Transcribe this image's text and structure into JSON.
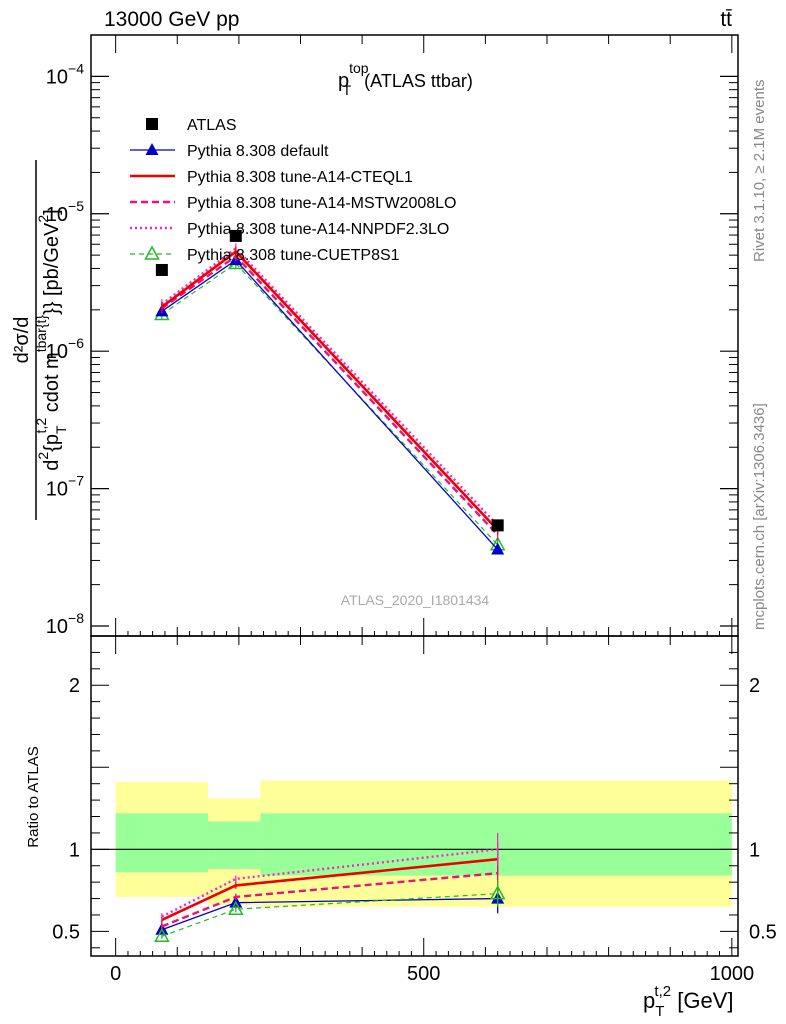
{
  "header": {
    "energy_label": "13000 GeV pp",
    "process_label": "tt̄"
  },
  "side_labels": {
    "rivet": "Rivet 3.1.10, ≥ 2.1M events",
    "mcplots": "mcplots.cern.ch [arXiv:1306.3436]"
  },
  "chart_data": [
    {
      "type": "line",
      "panel": "main",
      "title": "p_T^top (ATLAS ttbar)",
      "title_main": "p",
      "title_sup": "top",
      "title_sub": "T",
      "title_rest": " (ATLAS ttbar)",
      "watermark": "ATLAS_2020_I1801434",
      "ylabel": "d²σ/d{p_T^{t,2} cdot m^{tbar{t}}} [pb/GeV²]",
      "ylabel_parts": {
        "num": "d²σ/d",
        "den_pre": "d",
        "den_p": "{p",
        "den_sub": "T",
        "den_sup": "t,2",
        "den_mid": " cdot m",
        "den_sup2": "tbar{t}",
        "den_end": "}} [pb/GeV",
        "den_exp": "2",
        "den_close": "]"
      },
      "yscale": "log",
      "ylim": [
        1e-08,
        0.0002
      ],
      "yticks": [
        {
          "v": 1e-08,
          "exp": "−8"
        },
        {
          "v": 1e-07,
          "exp": "−7"
        },
        {
          "v": 1e-06,
          "exp": "−6"
        },
        {
          "v": 1e-05,
          "exp": "−5"
        },
        {
          "v": 0.0001,
          "exp": "−4"
        }
      ],
      "xlim": [
        -40,
        1010
      ],
      "legend_position": "top-left",
      "series": [
        {
          "name": "ATLAS",
          "color": "#000000",
          "marker": "square",
          "line": "none",
          "x": [
            75,
            195,
            620
          ],
          "y": [
            3.9e-06,
            6.9e-06,
            5.4e-08
          ]
        },
        {
          "name": "Pythia 8.308 default",
          "color": "#0000cc",
          "marker": "triangle",
          "line": "solid",
          "x": [
            75,
            195,
            620
          ],
          "y": [
            1.95e-06,
            4.6e-06,
            3.6e-08
          ]
        },
        {
          "name": "Pythia 8.308 tune-A14-CTEQL1",
          "color": "#ee0000",
          "marker": "none",
          "line": "solid-thick",
          "x": [
            75,
            195,
            620
          ],
          "y": [
            2.1e-06,
            5.3e-06,
            5e-08
          ]
        },
        {
          "name": "Pythia 8.308 tune-A14-MSTW2008LO",
          "color": "#ee1177",
          "marker": "none",
          "line": "dashed",
          "x": [
            75,
            195,
            620
          ],
          "y": [
            2.05e-06,
            4.9e-06,
            4.6e-08
          ]
        },
        {
          "name": "Pythia 8.308 tune-A14-NNPDF2.3LO",
          "color": "#ff22cc",
          "marker": "none",
          "line": "dotted",
          "x": [
            75,
            195,
            620
          ],
          "y": [
            2.2e-06,
            5.6e-06,
            5.4e-08
          ]
        },
        {
          "name": "Pythia 8.308 tune-CUETP8S1",
          "color": "#22bb22",
          "marker": "open-triangle",
          "line": "dashed-thin",
          "x": [
            75,
            195,
            620
          ],
          "y": [
            1.85e-06,
            4.35e-06,
            3.9e-08
          ]
        }
      ]
    },
    {
      "type": "line",
      "panel": "ratio",
      "ylabel": "Ratio to ATLAS",
      "ylim": [
        0.35,
        2.3
      ],
      "yticks": [
        {
          "v": 0.5,
          "label": "0.5"
        },
        {
          "v": 1,
          "label": "1"
        },
        {
          "v": 2,
          "label": "2"
        }
      ],
      "xlim": [
        -40,
        1010
      ],
      "xticks": [
        {
          "v": 0,
          "label": "0"
        },
        {
          "v": 500,
          "label": "500"
        },
        {
          "v": 1000,
          "label": "1000"
        }
      ],
      "xlabel": "p_T^{t,2} [GeV]",
      "xlabel_parts": {
        "main": "p",
        "sub": "T",
        "sup": "t,2",
        "rest": " [GeV]"
      },
      "bands": [
        {
          "x0": 0,
          "x1": 150,
          "yellow": [
            0.71,
            1.41
          ],
          "green": [
            0.86,
            1.22
          ]
        },
        {
          "x0": 150,
          "x1": 235,
          "yellow": [
            0.66,
            1.31
          ],
          "green": [
            0.88,
            1.17
          ]
        },
        {
          "x0": 235,
          "x1": 1000,
          "yellow": [
            0.65,
            1.42
          ],
          "green": [
            0.84,
            1.22
          ]
        }
      ],
      "series": [
        {
          "name": "Pythia 8.308 default",
          "x": [
            75,
            195,
            620
          ],
          "y": [
            0.51,
            0.675,
            0.7
          ],
          "err": [
            0.02,
            0.015,
            0.09
          ]
        },
        {
          "name": "Pythia 8.308 tune-A14-CTEQL1",
          "x": [
            75,
            195,
            620
          ],
          "y": [
            0.57,
            0.78,
            0.94
          ],
          "err": [
            0.025,
            0.02,
            0.1
          ]
        },
        {
          "name": "Pythia 8.308 tune-A14-MSTW2008LO",
          "x": [
            75,
            195,
            620
          ],
          "y": [
            0.53,
            0.71,
            0.855
          ],
          "err": [
            0.02,
            0.02,
            0.1
          ]
        },
        {
          "name": "Pythia 8.308 tune-A14-NNPDF2.3LO",
          "x": [
            75,
            195,
            620
          ],
          "y": [
            0.59,
            0.82,
            1.0
          ],
          "err": [
            0.02,
            0.02,
            0.1
          ]
        },
        {
          "name": "Pythia 8.308 tune-CUETP8S1",
          "x": [
            75,
            195,
            620
          ],
          "y": [
            0.47,
            0.635,
            0.73
          ],
          "err": [
            0.015,
            0.02,
            0.08
          ]
        }
      ]
    }
  ]
}
